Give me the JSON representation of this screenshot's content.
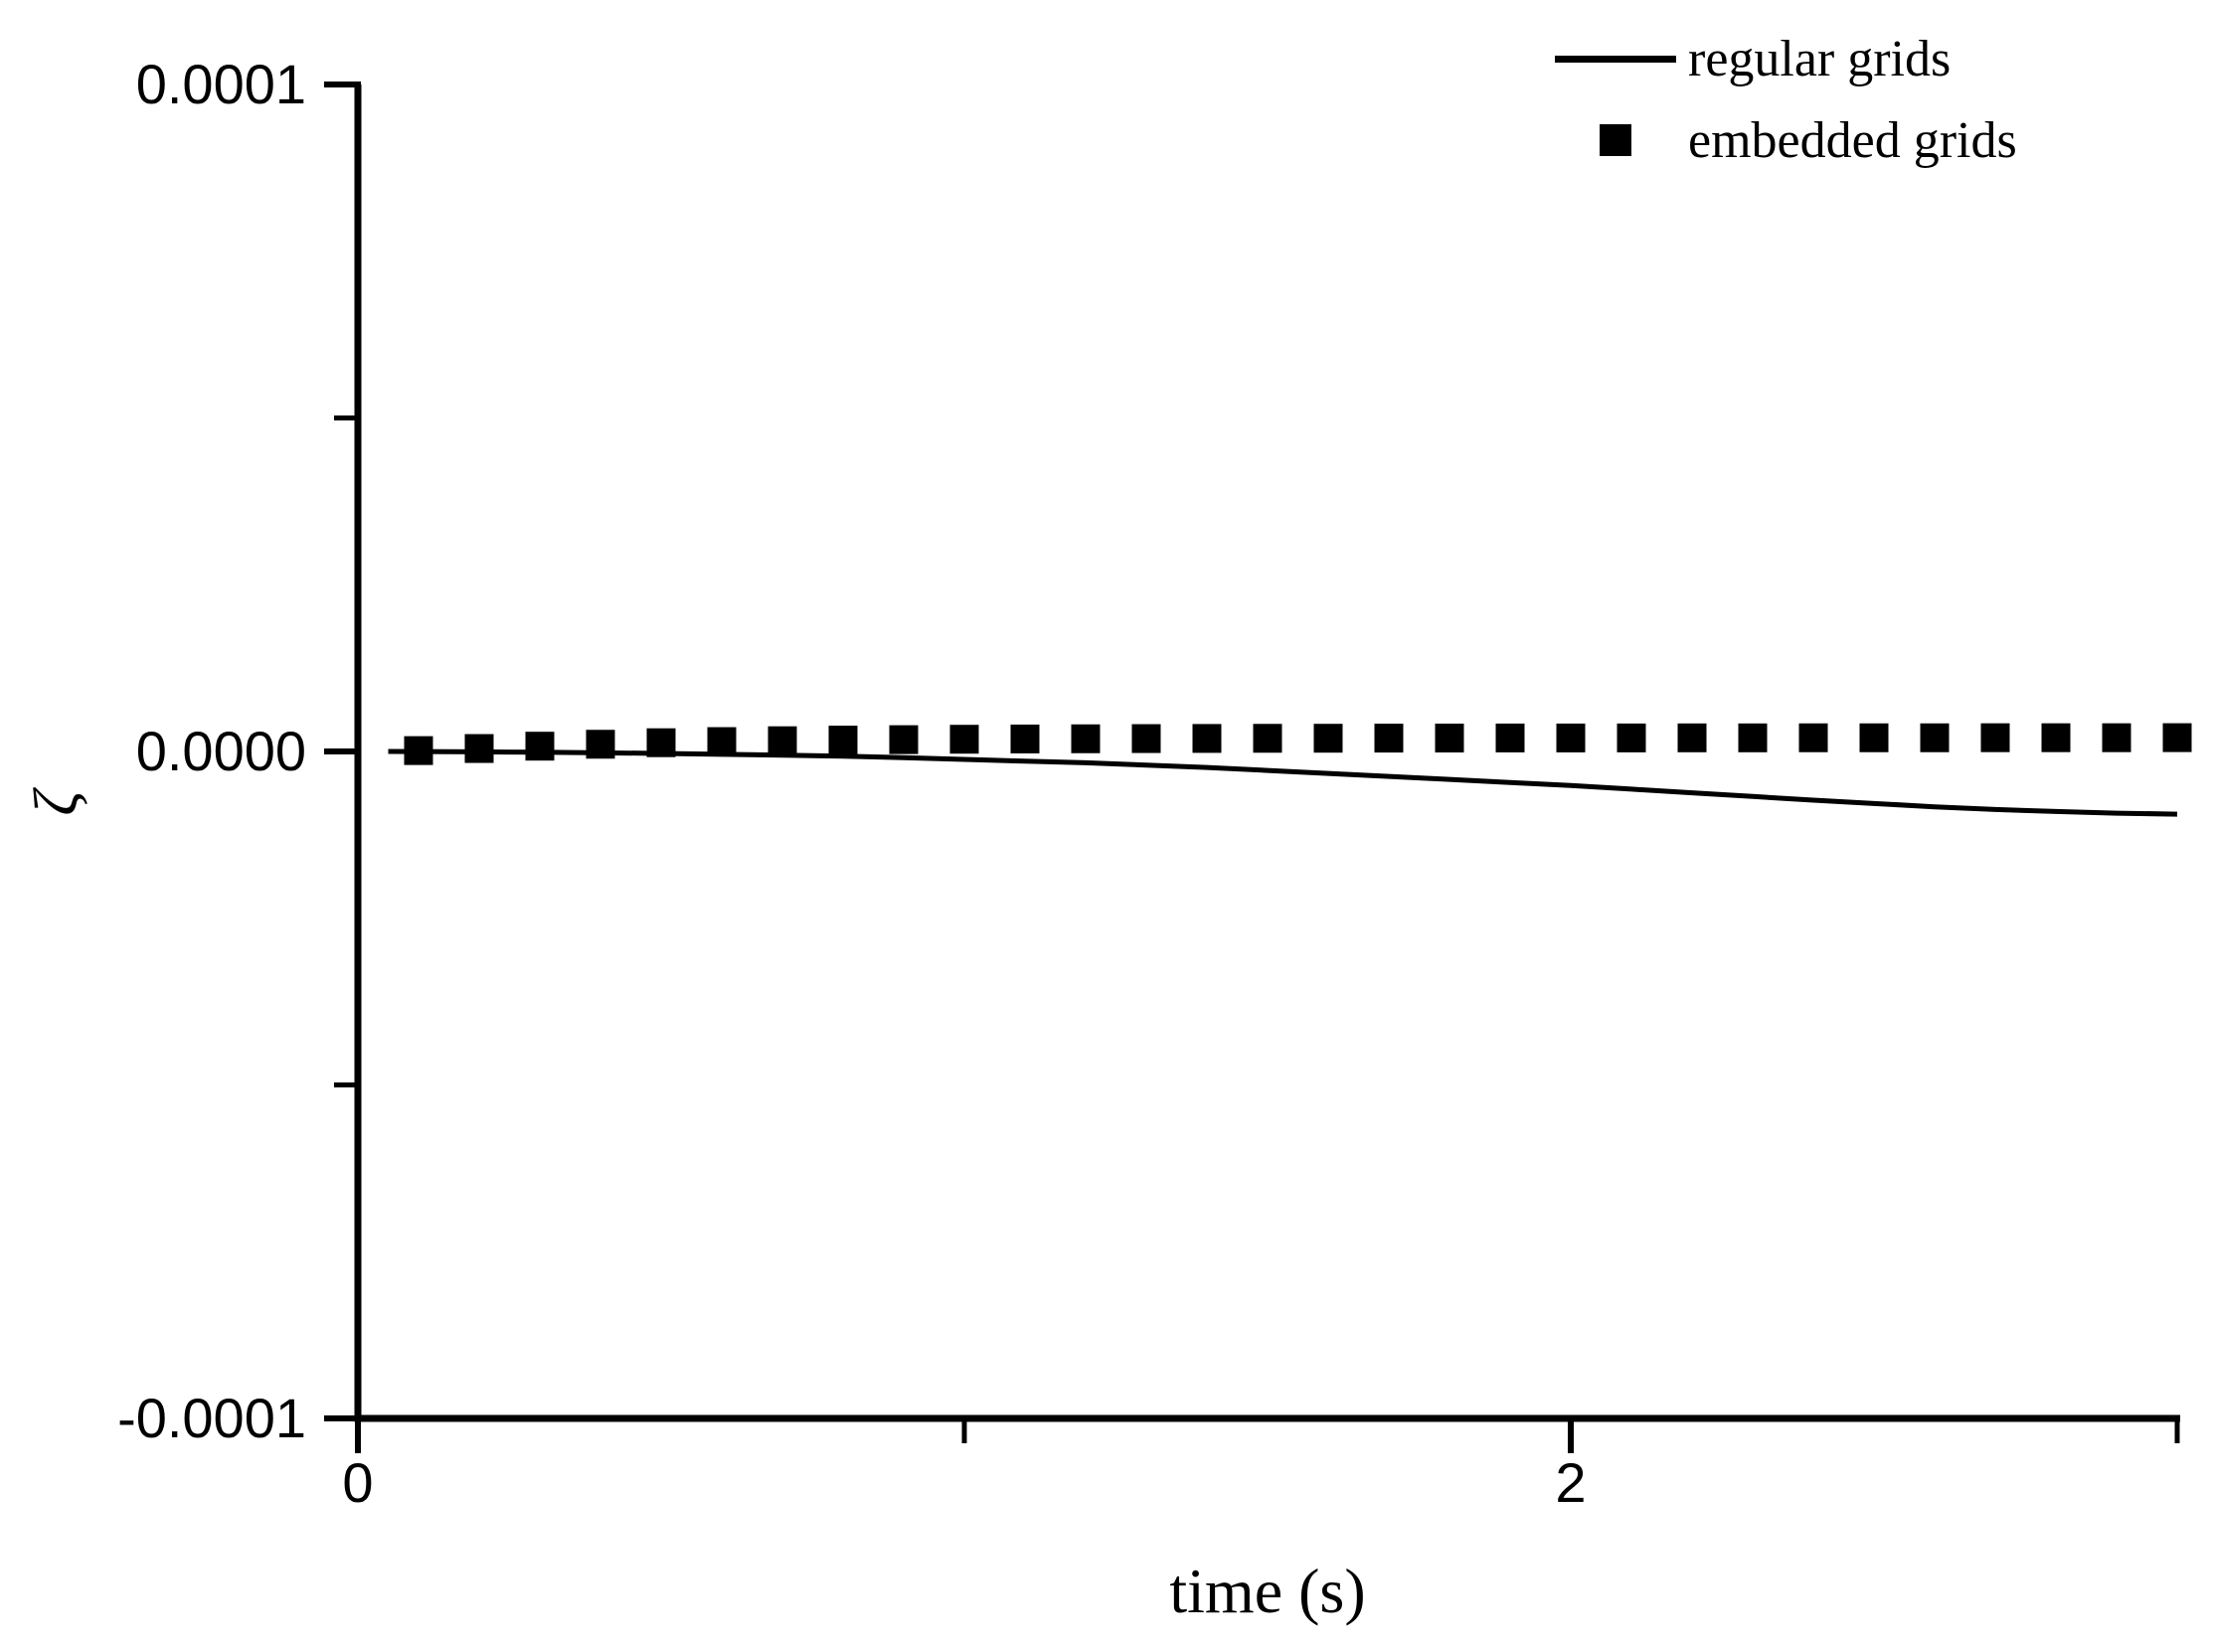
{
  "figure": {
    "background": "#ffffff",
    "ink_color": "#000000"
  },
  "chart_data": {
    "type": "line",
    "title": "",
    "xlabel": "time (s)",
    "ylabel": "ζ",
    "xlim": [
      0,
      3
    ],
    "ylim": [
      -0.0001,
      0.0001
    ],
    "grid": false,
    "legend_position": "top-right",
    "axes": {
      "x": {
        "major_ticks": [
          0,
          2
        ],
        "minor_ticks": [
          1,
          3
        ],
        "tick_labels": [
          "0",
          "2"
        ]
      },
      "y": {
        "major_ticks": [
          -0.0001,
          0,
          0.0001
        ],
        "minor_ticks": [
          -5e-05,
          5e-05
        ],
        "tick_labels": [
          "-0.0001",
          "0.0000",
          "0.0001"
        ]
      }
    },
    "series": [
      {
        "name": "regular grids",
        "type": "line",
        "color": "#000000",
        "x": [
          0.05,
          0.1,
          0.2,
          0.3,
          0.4,
          0.5,
          0.6,
          0.7,
          0.8,
          0.9,
          1.0,
          1.1,
          1.2,
          1.3,
          1.4,
          1.5,
          1.6,
          1.7,
          1.8,
          1.9,
          2.0,
          2.1,
          2.2,
          2.3,
          2.4,
          2.5,
          2.6,
          2.7,
          2.8,
          2.9,
          3.0
        ],
        "y": [
          0,
          -2e-08,
          -6e-08,
          -1.2e-07,
          -2e-07,
          -3e-07,
          -4.2e-07,
          -5.5e-07,
          -7e-07,
          -9.3e-07,
          -1.2e-06,
          -1.45e-06,
          -1.7e-06,
          -2.05e-06,
          -2.4e-06,
          -2.85e-06,
          -3.3e-06,
          -3.75e-06,
          -4.2e-06,
          -4.65e-06,
          -5.1e-06,
          -5.65e-06,
          -6.2e-06,
          -6.75e-06,
          -7.3e-06,
          -7.8e-06,
          -8.3e-06,
          -8.7e-06,
          -9e-06,
          -9.25e-06,
          -9.4e-06
        ]
      },
      {
        "name": "embedded grids",
        "type": "scatter",
        "marker": "filled-square",
        "color": "#000000",
        "x": [
          0.1,
          0.2,
          0.3,
          0.4,
          0.5,
          0.6,
          0.7,
          0.8,
          0.9,
          1.0,
          1.1,
          1.2,
          1.3,
          1.4,
          1.5,
          1.6,
          1.7,
          1.8,
          1.9,
          2.0,
          2.1,
          2.2,
          2.3,
          2.4,
          2.5,
          2.6,
          2.7,
          2.8,
          2.9,
          3.0
        ],
        "y": [
          1.3e-07,
          4.4e-07,
          7.9e-07,
          1.08e-06,
          1.31e-06,
          1.48e-06,
          1.61e-06,
          1.7e-06,
          1.77e-06,
          1.83e-06,
          1.87e-06,
          1.9e-06,
          1.93e-06,
          1.95e-06,
          1.97e-06,
          1.98e-06,
          2e-06,
          2.01e-06,
          2.02e-06,
          2.02e-06,
          2.03e-06,
          2.04e-06,
          2.04e-06,
          2.05e-06,
          2.05e-06,
          2.05e-06,
          2.06e-06,
          2.06e-06,
          2.06e-06,
          2.07e-06
        ]
      }
    ]
  }
}
